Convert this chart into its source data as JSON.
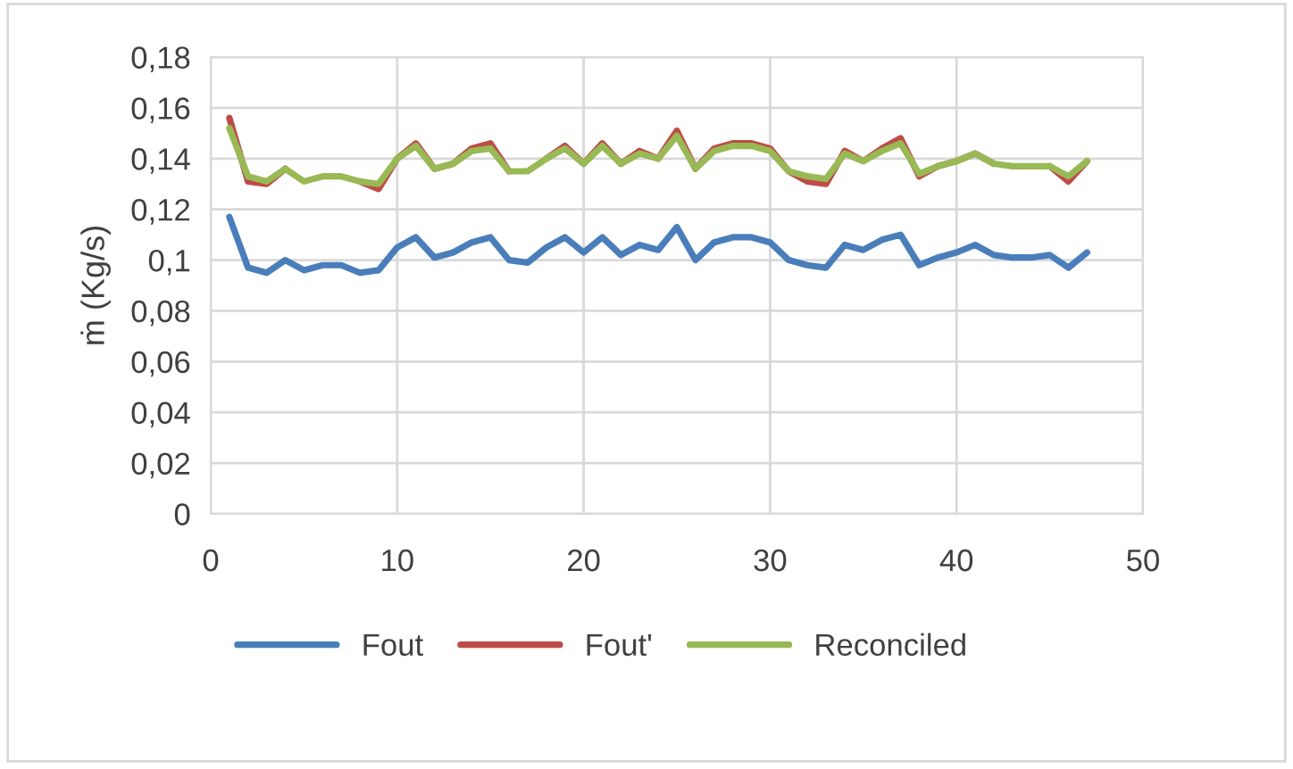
{
  "chart_data": {
    "type": "line",
    "ylabel": "ṁ (Kg/s)",
    "x": [
      1,
      2,
      3,
      4,
      5,
      6,
      7,
      8,
      9,
      10,
      11,
      12,
      13,
      14,
      15,
      16,
      17,
      18,
      19,
      20,
      21,
      22,
      23,
      24,
      25,
      26,
      27,
      28,
      29,
      30,
      31,
      32,
      33,
      34,
      35,
      36,
      37,
      38,
      39,
      40,
      41,
      42,
      43,
      44,
      45,
      46,
      47
    ],
    "series": [
      {
        "name": "Fout",
        "color": "#4a7ebb",
        "values": [
          0.117,
          0.097,
          0.095,
          0.1,
          0.096,
          0.098,
          0.098,
          0.095,
          0.096,
          0.105,
          0.109,
          0.101,
          0.103,
          0.107,
          0.109,
          0.1,
          0.099,
          0.105,
          0.109,
          0.103,
          0.109,
          0.102,
          0.106,
          0.104,
          0.113,
          0.1,
          0.107,
          0.109,
          0.109,
          0.107,
          0.1,
          0.098,
          0.097,
          0.106,
          0.104,
          0.108,
          0.11,
          0.098,
          0.101,
          0.103,
          0.106,
          0.102,
          0.101,
          0.101,
          0.102,
          0.097,
          0.103
        ]
      },
      {
        "name": "Fout'",
        "color": "#be4b48",
        "values": [
          0.156,
          0.131,
          0.13,
          0.136,
          null,
          null,
          null,
          0.131,
          0.128,
          0.14,
          0.146,
          0.136,
          0.138,
          0.144,
          0.146,
          0.135,
          null,
          0.14,
          0.145,
          0.138,
          0.146,
          0.138,
          0.143,
          0.14,
          0.151,
          0.136,
          0.144,
          0.146,
          0.146,
          0.144,
          0.135,
          0.131,
          0.13,
          0.143,
          0.139,
          0.144,
          0.148,
          0.133,
          0.137,
          0.139,
          0.142,
          0.138,
          null,
          null,
          0.137,
          0.131,
          0.139
        ]
      },
      {
        "name": "Reconciled",
        "color": "#98b954",
        "values": [
          0.152,
          0.133,
          0.131,
          0.136,
          0.131,
          0.133,
          0.133,
          0.131,
          0.13,
          0.14,
          0.145,
          0.136,
          0.138,
          0.143,
          0.144,
          0.135,
          0.135,
          0.14,
          0.144,
          0.138,
          0.145,
          0.138,
          0.142,
          0.14,
          0.149,
          0.136,
          0.143,
          0.145,
          0.145,
          0.143,
          0.135,
          0.133,
          0.132,
          0.142,
          0.139,
          0.143,
          0.146,
          0.134,
          0.137,
          0.139,
          0.142,
          0.138,
          0.137,
          0.137,
          0.137,
          0.133,
          0.139
        ]
      }
    ],
    "xlim": [
      0,
      50
    ],
    "xticks": [
      0,
      10,
      20,
      30,
      40,
      50
    ],
    "ylim": [
      0,
      0.18
    ],
    "yticks": [
      {
        "value": 0,
        "label": "0"
      },
      {
        "value": 0.02,
        "label": "0,02"
      },
      {
        "value": 0.04,
        "label": "0,04"
      },
      {
        "value": 0.06,
        "label": "0,06"
      },
      {
        "value": 0.08,
        "label": "0,08"
      },
      {
        "value": 0.1,
        "label": "0,1"
      },
      {
        "value": 0.12,
        "label": "0,12"
      },
      {
        "value": 0.14,
        "label": "0,14"
      },
      {
        "value": 0.16,
        "label": "0,16"
      },
      {
        "value": 0.18,
        "label": "0,18"
      }
    ],
    "grid": true,
    "legend": "bottom",
    "line_style": "solid",
    "marker": "none"
  }
}
